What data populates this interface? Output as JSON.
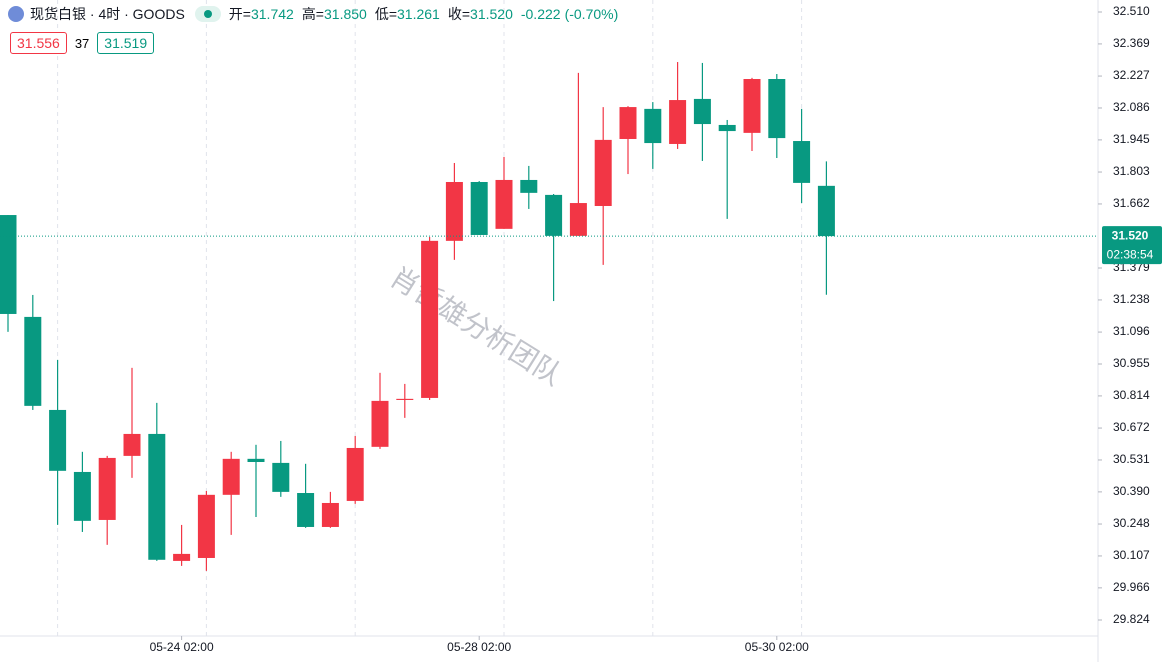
{
  "header": {
    "symbol": "现货白银 · 4时 · GOODS",
    "open_label": "开=",
    "open": "31.742",
    "high_label": "高=",
    "high": "31.850",
    "low_label": "低=",
    "low": "31.261",
    "close_label": "收=",
    "close": "31.520",
    "change": "-0.222",
    "change_pct": "(-0.70%)",
    "bid": "31.556",
    "spread": "37",
    "ask": "31.519"
  },
  "watermark": "肖哲雄分析团队",
  "chart_data": {
    "type": "candlestick",
    "categories": [
      null,
      null,
      null,
      null,
      null,
      null,
      null,
      "05-24 02:00",
      null,
      null,
      null,
      null,
      null,
      null,
      null,
      null,
      null,
      null,
      null,
      "05-28 02:00",
      null,
      null,
      null,
      null,
      null,
      null,
      null,
      null,
      null,
      null,
      null,
      "05-30 02:00",
      null,
      null
    ],
    "open": [
      31.613,
      31.163,
      30.752,
      30.478,
      30.266,
      30.549,
      30.646,
      30.085,
      30.098,
      30.377,
      30.536,
      30.518,
      30.385,
      30.235,
      30.35,
      30.589,
      30.796,
      30.805,
      31.499,
      31.759,
      31.552,
      31.768,
      31.702,
      31.521,
      31.653,
      31.949,
      32.082,
      31.927,
      32.126,
      32.011,
      31.976,
      32.214,
      31.94,
      31.742
    ],
    "high": [
      31.613,
      31.26,
      30.973,
      30.567,
      30.549,
      30.938,
      30.783,
      30.244,
      30.394,
      30.567,
      30.598,
      30.615,
      30.514,
      30.39,
      30.637,
      30.916,
      30.867,
      31.516,
      31.843,
      31.763,
      31.87,
      31.83,
      31.706,
      32.241,
      32.09,
      32.094,
      32.112,
      32.289,
      32.285,
      32.033,
      32.219,
      32.236,
      32.082,
      31.85
    ],
    "low": [
      31.097,
      30.752,
      30.244,
      30.213,
      30.156,
      30.452,
      30.085,
      30.063,
      30.041,
      30.2,
      30.279,
      30.368,
      30.231,
      30.231,
      30.337,
      30.58,
      30.717,
      30.796,
      31.415,
      31.525,
      31.552,
      31.64,
      31.233,
      31.521,
      31.393,
      31.794,
      31.817,
      31.905,
      31.852,
      31.596,
      31.896,
      31.865,
      31.666,
      31.261
    ],
    "close": [
      31.176,
      30.77,
      30.483,
      30.262,
      30.54,
      30.646,
      30.09,
      30.116,
      30.377,
      30.536,
      30.522,
      30.39,
      30.235,
      30.341,
      30.584,
      30.792,
      30.801,
      31.499,
      31.759,
      31.525,
      31.768,
      31.711,
      31.521,
      31.666,
      31.945,
      32.09,
      31.931,
      32.121,
      32.015,
      31.984,
      32.214,
      31.953,
      31.755,
      31.52
    ],
    "up_color": "#f23645",
    "down_color": "#089981",
    "ylim": [
      29.824,
      32.51
    ],
    "yticks": [
      29.824,
      29.966,
      30.107,
      30.248,
      {
        "value": 30.39,
        "label": "30.390"
      },
      30.531,
      30.672,
      30.814,
      30.955,
      31.096,
      31.238,
      31.379,
      31.662,
      31.803,
      31.945,
      32.086,
      32.227,
      32.369,
      {
        "value": 32.51,
        "label": "32.510"
      }
    ],
    "price_line": {
      "value": 31.52,
      "label": "31.520",
      "countdown": "02:38:54"
    }
  }
}
